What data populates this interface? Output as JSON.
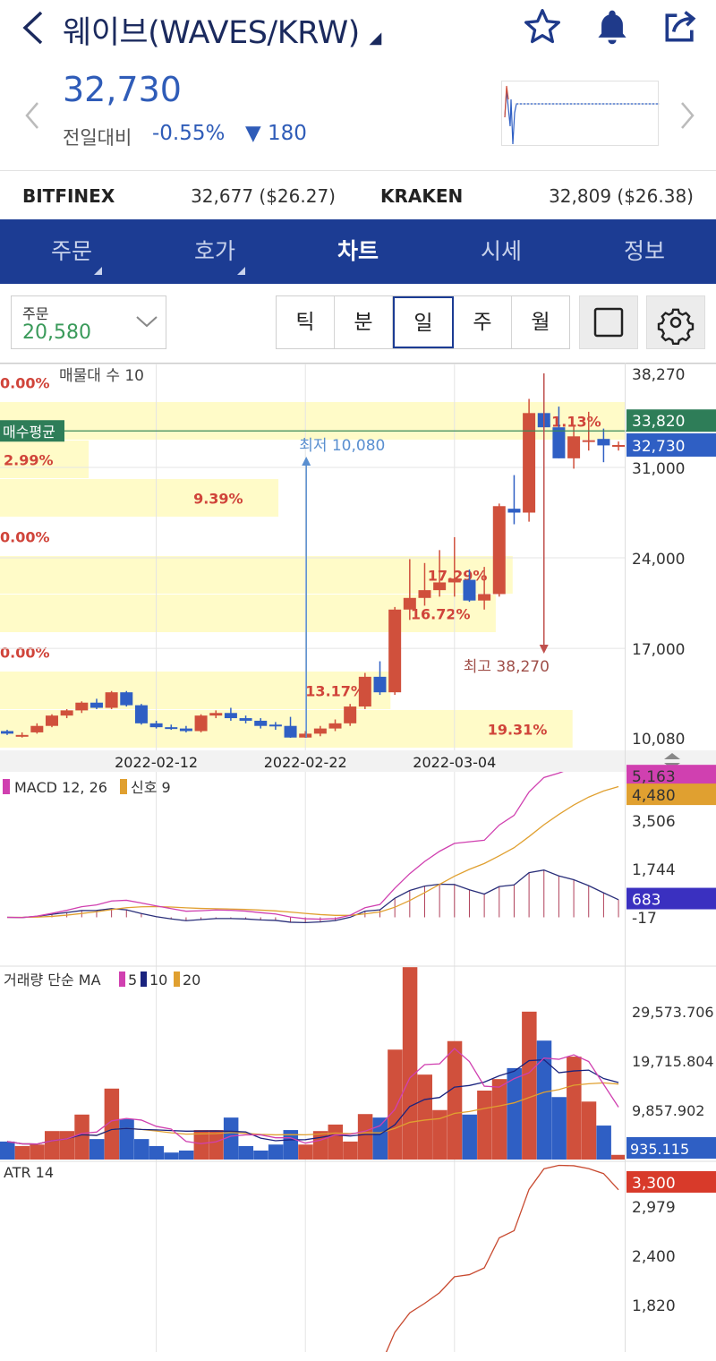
{
  "header": {
    "title": "웨이브(WAVES/KRW)",
    "back_icon": "chevron-left-icon",
    "star_icon": "star-icon",
    "bell_icon": "bell-icon",
    "share_icon": "share-icon"
  },
  "ticker": {
    "price": "32,730",
    "change_label": "전일대비",
    "change_pct": "-0.55%",
    "change_abs": "▼ 180"
  },
  "exchanges": [
    {
      "name": "BITFINEX",
      "value": "32,677 ($26.27)"
    },
    {
      "name": "KRAKEN",
      "value": "32,809 ($26.38)"
    }
  ],
  "nav": [
    {
      "label": "주문",
      "sub": true
    },
    {
      "label": "호가",
      "sub": true
    },
    {
      "label": "차트",
      "selected": true
    },
    {
      "label": "시세"
    },
    {
      "label": "정보"
    }
  ],
  "order_select": {
    "label": "주문",
    "value": "20,580"
  },
  "periods": [
    "틱",
    "분",
    "일",
    "주",
    "월"
  ],
  "selected_period": "일",
  "colors": {
    "up": "#d0503c",
    "down": "#2f5fc4",
    "nav": "#1c3c93",
    "avg": "#2e8b5a",
    "band": "#fffbc8"
  },
  "chart_data": {
    "type": "candlestick",
    "legend": "매물대 수 10",
    "bid_avg_label": "매수평균",
    "bid_avg": 33820,
    "bid_avg_tag": "33,820",
    "current": 32730,
    "current_tag": "32,730",
    "price_ticks": [
      {
        "v": 38270,
        "t": "38,270"
      },
      {
        "v": 31000,
        "t": "31,000"
      },
      {
        "v": 24000,
        "t": "24,000"
      },
      {
        "v": 17000,
        "t": "17,000"
      },
      {
        "v": 10080,
        "t": "10,080"
      }
    ],
    "low_label": "최저 10,080",
    "high_label": "최고 38,270",
    "low": 10080,
    "high": 38270,
    "date_ticks": [
      {
        "i": 10,
        "t": "2022-02-12"
      },
      {
        "i": 20,
        "t": "2022-02-22"
      },
      {
        "i": 30,
        "t": "2022-03-04"
      }
    ],
    "volume_profile_bands": [
      "19.31%",
      "13.17%",
      "0.00%",
      "16.72%",
      "17.29%",
      "0.00%",
      "9.39%",
      "2.99%",
      "21.13%",
      "0.00%"
    ],
    "ohlc": [
      [
        10600,
        10700,
        10300,
        10400
      ],
      [
        10200,
        10500,
        10100,
        10300
      ],
      [
        10500,
        11200,
        10400,
        11000
      ],
      [
        11000,
        11900,
        10900,
        11800
      ],
      [
        11800,
        12300,
        11600,
        12200
      ],
      [
        12200,
        12900,
        12000,
        12800
      ],
      [
        12800,
        13100,
        12300,
        12400
      ],
      [
        12400,
        13700,
        12300,
        13600
      ],
      [
        13600,
        13700,
        12500,
        12600
      ],
      [
        12600,
        12700,
        11100,
        11200
      ],
      [
        11200,
        11400,
        10800,
        10900
      ],
      [
        10900,
        11100,
        10700,
        10800
      ],
      [
        10800,
        11000,
        10500,
        10600
      ],
      [
        10600,
        11900,
        10500,
        11800
      ],
      [
        11800,
        12200,
        11600,
        12000
      ],
      [
        12000,
        12400,
        11400,
        11600
      ],
      [
        11600,
        11800,
        11200,
        11400
      ],
      [
        11400,
        11600,
        10800,
        11000
      ],
      [
        11100,
        11300,
        10700,
        11000
      ],
      [
        11000,
        11700,
        10080,
        10100
      ],
      [
        10100,
        10600,
        10080,
        10400
      ],
      [
        10400,
        11000,
        10200,
        10800
      ],
      [
        10800,
        11500,
        10600,
        11200
      ],
      [
        11200,
        12700,
        11000,
        12500
      ],
      [
        12500,
        15100,
        12300,
        14800
      ],
      [
        14800,
        16000,
        13400,
        13600
      ],
      [
        13600,
        20200,
        13400,
        20000
      ],
      [
        20000,
        23900,
        19200,
        20900
      ],
      [
        20900,
        23600,
        20300,
        21500
      ],
      [
        21500,
        24600,
        21000,
        22100
      ],
      [
        22100,
        25600,
        21000,
        22400
      ],
      [
        22300,
        23100,
        20600,
        20700
      ],
      [
        20700,
        23300,
        20000,
        21200
      ],
      [
        21200,
        28200,
        21000,
        28000
      ],
      [
        27800,
        30400,
        26600,
        27500
      ],
      [
        27500,
        36300,
        26800,
        35200
      ],
      [
        35200,
        38270,
        31700,
        34100
      ],
      [
        34100,
        35700,
        31700,
        31700
      ],
      [
        31700,
        34300,
        30900,
        33400
      ],
      [
        33100,
        35300,
        32300,
        33100
      ],
      [
        33200,
        34000,
        31400,
        32700
      ],
      [
        32700,
        33000,
        32300,
        32730
      ]
    ],
    "volume": [
      3600,
      2700,
      3000,
      5700,
      5700,
      9000,
      4100,
      14200,
      8100,
      4100,
      2700,
      1400,
      1800,
      5900,
      5900,
      8400,
      2700,
      1800,
      3000,
      5900,
      3000,
      5700,
      7000,
      3600,
      9100,
      8400,
      22000,
      38500,
      17000,
      9900,
      23700,
      9000,
      13800,
      16100,
      18300,
      29600,
      23800,
      12500,
      20600,
      11600,
      6800,
      935.115
    ],
    "macd": {
      "label": "MACD 12, 26",
      "signal_label": "신호 9",
      "ticks": [
        {
          "v": 3506,
          "t": "3,506"
        },
        {
          "v": 1744,
          "t": "1,744"
        },
        {
          "v": -17,
          "t": "-17"
        }
      ],
      "macd_tag": "5,163",
      "signal_tag": "4,480",
      "hist_tag": "683"
    },
    "volume_panel": {
      "label": "거래량 단순 MA",
      "ma": [
        "5",
        "10",
        "20"
      ],
      "ticks": [
        {
          "v": 29573.706,
          "t": "29,573.706"
        },
        {
          "v": 19715.804,
          "t": "19,715.804"
        },
        {
          "v": 9857.902,
          "t": "9,857.902"
        }
      ],
      "last_tag": "935.115"
    },
    "atr": {
      "label": "ATR 14",
      "ticks": [
        {
          "v": 2979,
          "t": "2,979"
        },
        {
          "v": 2400,
          "t": "2,400"
        },
        {
          "v": 1820,
          "t": "1,820"
        }
      ],
      "tag": "3,300"
    }
  }
}
